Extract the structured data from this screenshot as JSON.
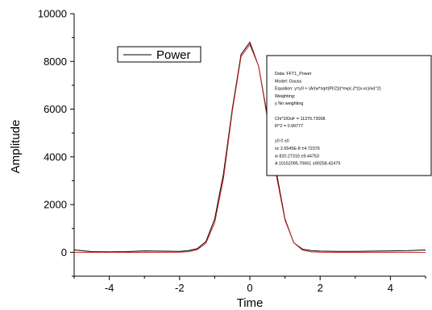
{
  "chart_data": {
    "type": "line",
    "xlabel": "Time",
    "ylabel": "Amplitude",
    "xlim": [
      -5,
      5
    ],
    "ylim": [
      -1000,
      10000
    ],
    "xticks": [
      -4,
      -2,
      0,
      2,
      4
    ],
    "yticks": [
      0,
      2000,
      4000,
      6000,
      8000,
      10000
    ],
    "legend": {
      "position": "top-left",
      "entries": [
        "Power"
      ]
    },
    "series": [
      {
        "name": "Power",
        "color": "#000000",
        "x": [
          -5.0,
          -4.5,
          -4.0,
          -3.5,
          -3.0,
          -2.5,
          -2.0,
          -1.75,
          -1.5,
          -1.25,
          -1.0,
          -0.75,
          -0.5,
          -0.25,
          0.0,
          0.25,
          0.5,
          0.75,
          1.0,
          1.25,
          1.5,
          1.75,
          2.0,
          2.5,
          3.0,
          3.5,
          4.0,
          4.5,
          5.0
        ],
        "y": [
          100,
          30,
          20,
          30,
          60,
          50,
          40,
          70,
          150,
          450,
          1400,
          3300,
          6000,
          8300,
          8800,
          7800,
          5700,
          3400,
          1400,
          400,
          130,
          70,
          50,
          40,
          40,
          50,
          60,
          70,
          100
        ]
      },
      {
        "name": "",
        "color": "#cc2222",
        "x": [
          -5.0,
          -4.5,
          -4.0,
          -3.5,
          -3.0,
          -2.5,
          -2.0,
          -1.75,
          -1.5,
          -1.25,
          -1.0,
          -0.75,
          -0.5,
          -0.25,
          0.0,
          0.25,
          0.5,
          0.75,
          1.0,
          1.25,
          1.5,
          1.75,
          2.0,
          2.5,
          3.0,
          3.5,
          4.0,
          4.5,
          5.0
        ],
        "y": [
          0,
          0,
          0,
          0,
          0,
          0,
          5,
          25,
          110,
          380,
          1250,
          3100,
          5900,
          8200,
          8700,
          7800,
          5600,
          3250,
          1350,
          400,
          90,
          15,
          2,
          0,
          0,
          0,
          0,
          0,
          0
        ]
      }
    ]
  },
  "fit_box": {
    "lines": [
      "Data: FFT1_Power",
      "Model: Gauss",
      "Equation: y=y0 + (A/(w*sqrt(PI/2)))*exp(-2*((x-xc)/w)^2)",
      "Weighting:",
      "y      No weighting",
      "",
      "Chi^2/DoF     = 11370.73008",
      "R^2     = 0.99777",
      "",
      "y0     0     ±0",
      "xc     2.6545E-8     ±4.72376",
      "w     820.27316     ±9.44753",
      "A     10152095.70661     ±90258.42479"
    ]
  }
}
